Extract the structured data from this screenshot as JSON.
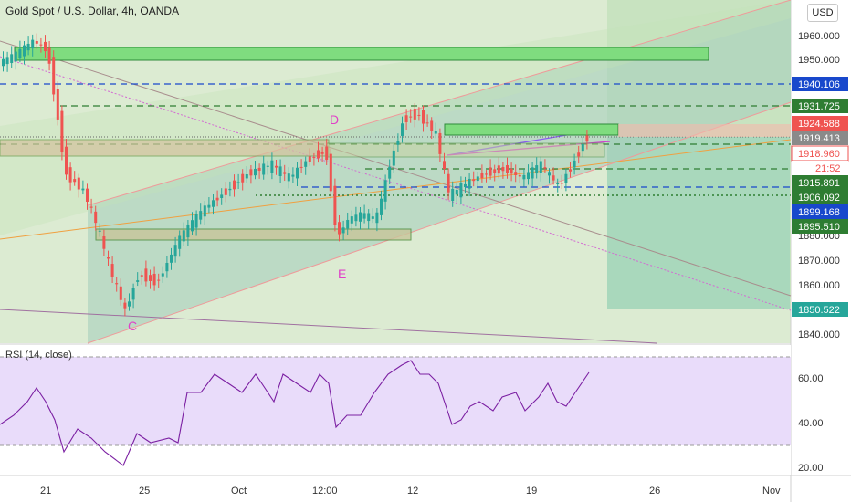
{
  "header": {
    "title": "Gold Spot / U.S. Dollar, 4h, OANDA",
    "currency_button": "USD"
  },
  "price_axis": {
    "ticks": [
      "1960.000",
      "1950.000",
      "1880.000",
      "1870.000",
      "1860.000",
      "1840.000"
    ]
  },
  "price_tags": [
    {
      "label": "1940.106",
      "color": "#1848cc"
    },
    {
      "label": "1931.725",
      "color": "#2e7d32"
    },
    {
      "label": "1924.588",
      "color": "#ef5350"
    },
    {
      "label": "1919.413",
      "color": "#8a8a8a"
    },
    {
      "label": "1918.960",
      "color": "#ef5350"
    },
    {
      "label": "21:52",
      "color": "#ef5350"
    },
    {
      "label": "1915.891",
      "color": "#2e7d32"
    },
    {
      "label": "1906.092",
      "color": "#2e7d32"
    },
    {
      "label": "1899.168",
      "color": "#1848cc"
    },
    {
      "label": "1895.510",
      "color": "#2e7d32"
    },
    {
      "label": "1850.522",
      "color": "#26a69a"
    }
  ],
  "wave_labels": [
    "C",
    "D",
    "E"
  ],
  "rsi": {
    "label": "RSI (14, close)",
    "ticks": [
      "60.00",
      "40.00",
      "20.00"
    ]
  },
  "time_axis": {
    "ticks": [
      "21",
      "25",
      "Oct",
      "12:00",
      "12",
      "19",
      "26",
      "Nov"
    ]
  },
  "colors": {
    "bull": "#26a69a",
    "bear": "#ef5350",
    "rsi_line": "#7b1fa2",
    "rsi_band": "#e9dcfa",
    "channel": "#9ccca8",
    "zone": "#7fdc7f",
    "wave_label": "#e040c8"
  }
}
